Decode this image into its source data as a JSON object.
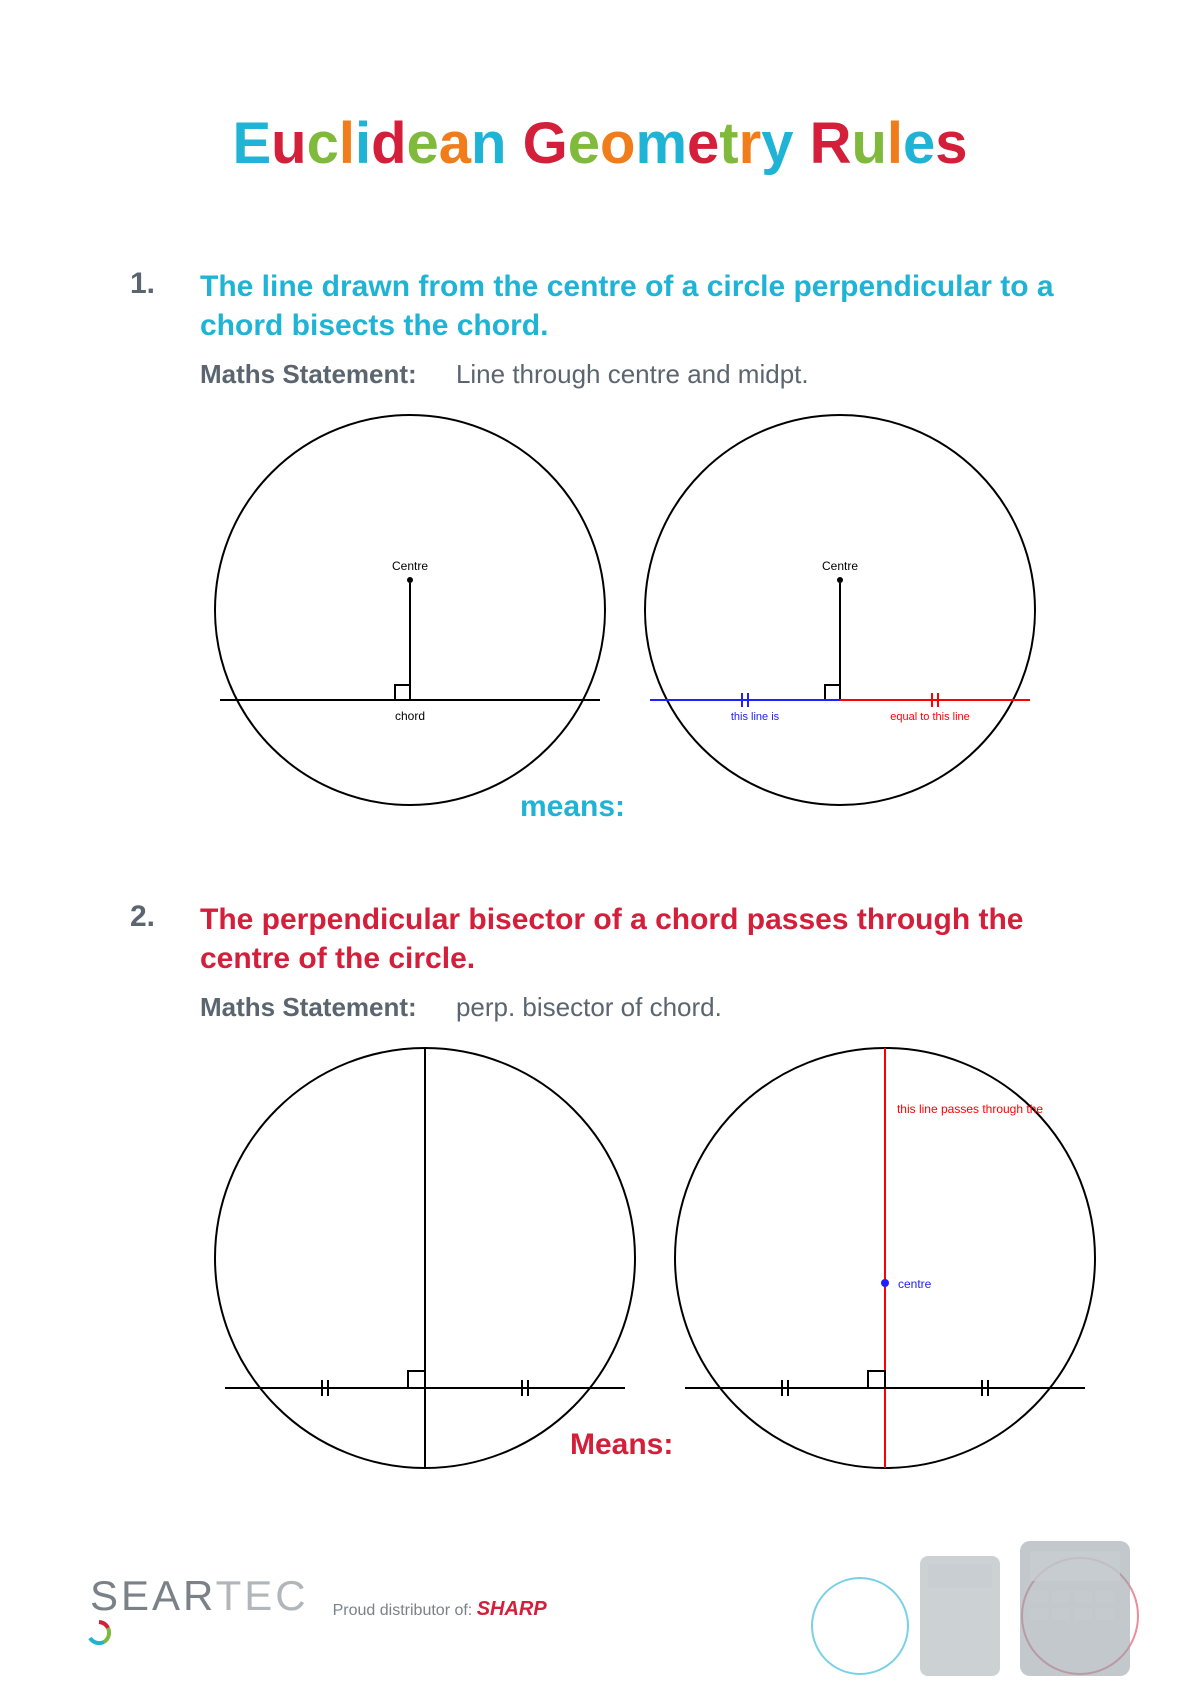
{
  "title_letters": [
    {
      "c": "E",
      "color": "#1fb3d5"
    },
    {
      "c": "u",
      "color": "#d41f3a"
    },
    {
      "c": "c",
      "color": "#7fba3c"
    },
    {
      "c": "l",
      "color": "#f07d1a"
    },
    {
      "c": "i",
      "color": "#1fb3d5"
    },
    {
      "c": "d",
      "color": "#d41f3a"
    },
    {
      "c": "e",
      "color": "#7fba3c"
    },
    {
      "c": "a",
      "color": "#f07d1a"
    },
    {
      "c": "n",
      "color": "#1fb3d5"
    },
    {
      "c": " ",
      "color": "#000"
    },
    {
      "c": "G",
      "color": "#d41f3a"
    },
    {
      "c": "e",
      "color": "#7fba3c"
    },
    {
      "c": "o",
      "color": "#f07d1a"
    },
    {
      "c": "m",
      "color": "#1fb3d5"
    },
    {
      "c": "e",
      "color": "#d41f3a"
    },
    {
      "c": "t",
      "color": "#7fba3c"
    },
    {
      "c": "r",
      "color": "#f07d1a"
    },
    {
      "c": "y",
      "color": "#1fb3d5"
    },
    {
      "c": " ",
      "color": "#000"
    },
    {
      "c": "R",
      "color": "#d41f3a"
    },
    {
      "c": "u",
      "color": "#7fba3c"
    },
    {
      "c": "l",
      "color": "#f07d1a"
    },
    {
      "c": "e",
      "color": "#1fb3d5"
    },
    {
      "c": "s",
      "color": "#d41f3a"
    }
  ],
  "rule1": {
    "num": "1.",
    "title": "The line drawn from the centre of a circle perpendicular to a chord bisects the chord.",
    "stmt_label": "Maths Statement:",
    "stmt_text": "Line through centre and midpt.",
    "means": "means:",
    "diag": {
      "circle_r": 195,
      "stroke": "#000000",
      "centre_label": "Centre",
      "chord_label": "chord",
      "tick_color_left": "#2020ff",
      "tick_color_right": "#ff0000",
      "left_text": "this line is",
      "right_text": "equal to this line"
    }
  },
  "rule2": {
    "num": "2.",
    "title": "The perpendicular bisector of a chord passes through the centre of the circle.",
    "stmt_label": "Maths Statement:",
    "stmt_text": "perp. bisector of chord.",
    "means": "Means:",
    "diag": {
      "circle_r": 210,
      "stroke": "#000000",
      "centre_label": "centre",
      "top_text": "this line passes through the",
      "centre_color": "#2020ff",
      "line_color": "#ff0000"
    }
  },
  "footer": {
    "brand_sear": "SEAR",
    "brand_tec": "TEC",
    "dist_pre": "Proud distributor of: ",
    "dist_brand": "SHARP"
  }
}
